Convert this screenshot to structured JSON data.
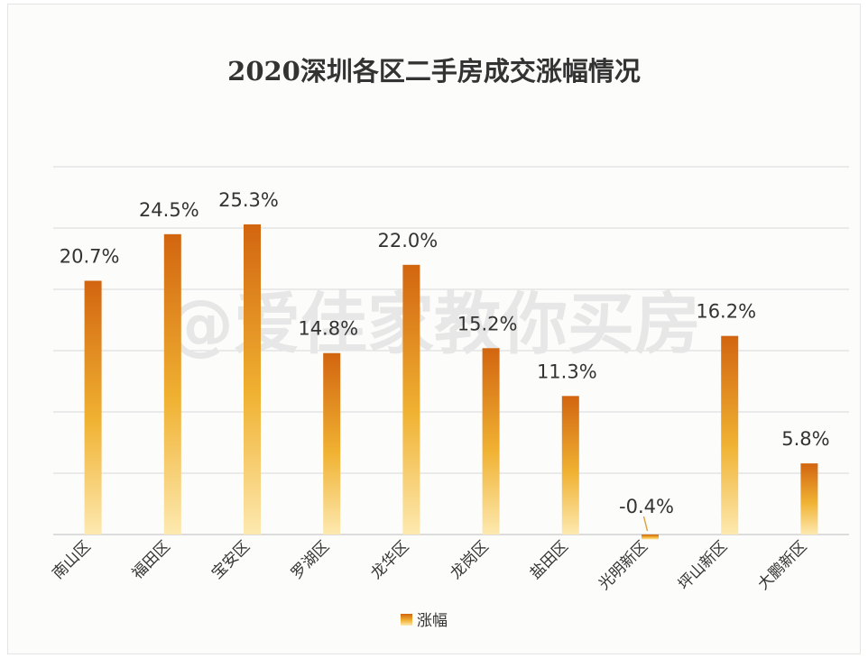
{
  "chart_data": {
    "type": "bar",
    "title": "2020深圳各区二手房成交涨幅情况",
    "categories": [
      "南山区",
      "福田区",
      "宝安区",
      "罗湖区",
      "龙华区",
      "龙岗区",
      "盐田区",
      "光明新区",
      "坪山新区",
      "大鹏新区"
    ],
    "series": [
      {
        "name": "涨幅",
        "values": [
          20.7,
          24.5,
          25.3,
          14.8,
          22.0,
          15.2,
          11.3,
          -0.4,
          16.2,
          5.8
        ],
        "labels": [
          "20.7%",
          "24.5%",
          "25.3%",
          "14.8%",
          "22.0%",
          "15.2%",
          "11.3%",
          "-0.4%",
          "16.2%",
          "5.8%"
        ]
      }
    ],
    "ylim": [
      0,
      30
    ],
    "grid": true,
    "legend": "bottom",
    "colors": {
      "bar_top": "#d26510",
      "bar_mid": "#f0b232",
      "bar_bottom": "#fde9b0"
    }
  },
  "watermark": "@爱佳家教你买房"
}
